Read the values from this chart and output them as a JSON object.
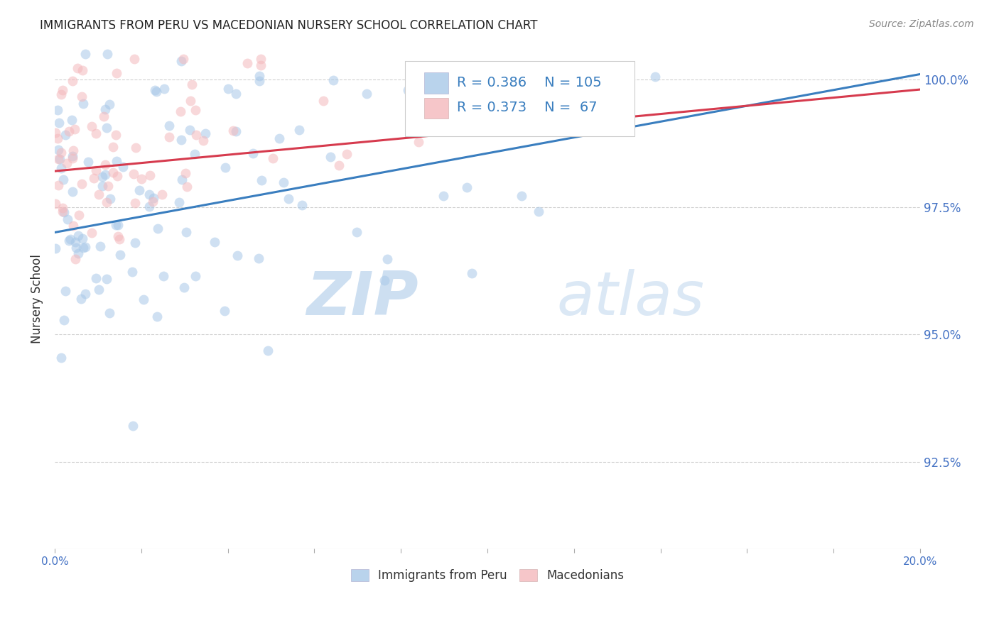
{
  "title": "IMMIGRANTS FROM PERU VS MACEDONIAN NURSERY SCHOOL CORRELATION CHART",
  "source": "Source: ZipAtlas.com",
  "ylabel": "Nursery School",
  "ytick_labels": [
    "92.5%",
    "95.0%",
    "97.5%",
    "100.0%"
  ],
  "ytick_values": [
    0.925,
    0.95,
    0.975,
    1.0
  ],
  "xlim": [
    0.0,
    0.2
  ],
  "ylim": [
    0.908,
    1.006
  ],
  "blue_color": "#a8c8e8",
  "pink_color": "#f4b8bc",
  "blue_line_color": "#3a7ebf",
  "pink_line_color": "#d63b4e",
  "legend_text_color": "#3a7ebf",
  "legend_blue_R": "0.386",
  "legend_blue_N": "105",
  "legend_pink_R": "0.373",
  "legend_pink_N": " 67",
  "watermark_zip": "ZIP",
  "watermark_atlas": "atlas",
  "blue_N": 105,
  "pink_N": 67,
  "blue_seed": 42,
  "pink_seed": 99,
  "marker_size": 100,
  "marker_alpha": 0.55,
  "grid_color": "#cccccc",
  "grid_style": "--",
  "title_fontsize": 12,
  "source_fontsize": 10,
  "ytick_color": "#4472c4",
  "xtick_color": "#4472c4"
}
